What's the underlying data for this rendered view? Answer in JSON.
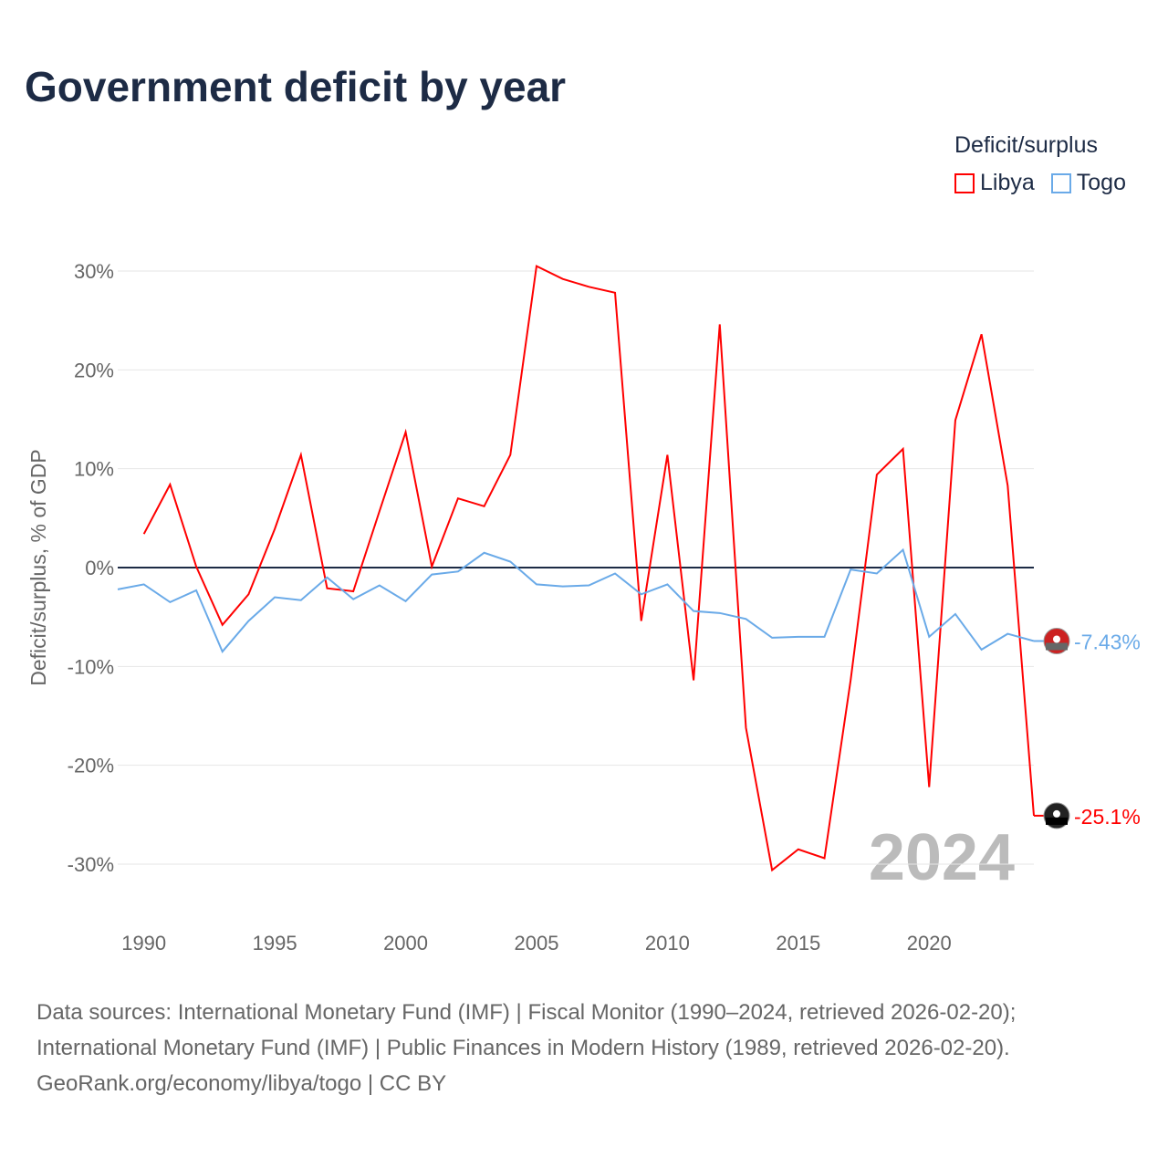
{
  "title": "Government deficit by year",
  "legend": {
    "title": "Deficit/surplus",
    "items": [
      {
        "label": "Libya",
        "color": "#ff0000"
      },
      {
        "label": "Togo",
        "color": "#6aaae8"
      }
    ]
  },
  "year_overlay": "2024",
  "footer": [
    "Data sources: International Monetary Fund (IMF) | Fiscal Monitor (1990–2024, retrieved 2026-02-20);",
    "International Monetary Fund (IMF) | Public Finances in Modern History (1989, retrieved 2026-02-20).",
    "GeoRank.org/economy/libya/togo | CC BY"
  ],
  "chart_data": {
    "type": "line",
    "title": "Government deficit by year",
    "ylabel": "Deficit/surplus, % of GDP",
    "xlabel": "",
    "xlim": [
      1989,
      2024
    ],
    "ylim": [
      -35,
      32
    ],
    "x_ticks": [
      1990,
      1995,
      2000,
      2005,
      2010,
      2015,
      2020
    ],
    "y_ticks": [
      {
        "v": 30,
        "label": "30%"
      },
      {
        "v": 20,
        "label": "20%"
      },
      {
        "v": 10,
        "label": "10%"
      },
      {
        "v": 0,
        "label": "0%"
      },
      {
        "v": -10,
        "label": "-10%"
      },
      {
        "v": -20,
        "label": "-20%"
      },
      {
        "v": -30,
        "label": "-30%"
      }
    ],
    "grid": true,
    "legend_position": "top-right",
    "series": [
      {
        "name": "Libya",
        "color": "#ff0000",
        "end_label": "-25.1%",
        "x": [
          1990,
          1991,
          1992,
          1993,
          1994,
          1995,
          1996,
          1997,
          1998,
          1999,
          2000,
          2001,
          2002,
          2003,
          2004,
          2005,
          2006,
          2007,
          2008,
          2009,
          2010,
          2011,
          2012,
          2013,
          2014,
          2015,
          2016,
          2017,
          2018,
          2019,
          2020,
          2021,
          2022,
          2023,
          2024
        ],
        "values": [
          3.4,
          8.4,
          0.1,
          -5.8,
          -2.7,
          3.9,
          11.4,
          -2.1,
          -2.4,
          5.7,
          13.7,
          0.1,
          7.0,
          6.2,
          11.4,
          30.5,
          29.2,
          28.4,
          27.8,
          -5.4,
          11.4,
          -11.4,
          24.6,
          -16.2,
          -30.6,
          -28.5,
          -29.4,
          -11.4,
          9.4,
          12.0,
          -22.2,
          14.9,
          23.6,
          8.3,
          -25.1
        ]
      },
      {
        "name": "Togo",
        "color": "#6aaae8",
        "end_label": "-7.43%",
        "x": [
          1989,
          1990,
          1991,
          1992,
          1993,
          1994,
          1995,
          1996,
          1997,
          1998,
          1999,
          2000,
          2001,
          2002,
          2003,
          2004,
          2005,
          2006,
          2007,
          2008,
          2009,
          2010,
          2011,
          2012,
          2013,
          2014,
          2015,
          2016,
          2017,
          2018,
          2019,
          2020,
          2021,
          2022,
          2023,
          2024
        ],
        "values": [
          -2.2,
          -1.7,
          -3.5,
          -2.3,
          -8.5,
          -5.4,
          -3.0,
          -3.3,
          -1.0,
          -3.2,
          -1.8,
          -3.4,
          -0.7,
          -0.4,
          1.5,
          0.6,
          -1.7,
          -1.9,
          -1.8,
          -0.6,
          -2.7,
          -1.7,
          -4.4,
          -4.6,
          -5.2,
          -7.1,
          -7.0,
          -7.0,
          -0.2,
          -0.6,
          1.8,
          -7.0,
          -4.7,
          -8.3,
          -6.7,
          -7.43
        ]
      }
    ]
  }
}
